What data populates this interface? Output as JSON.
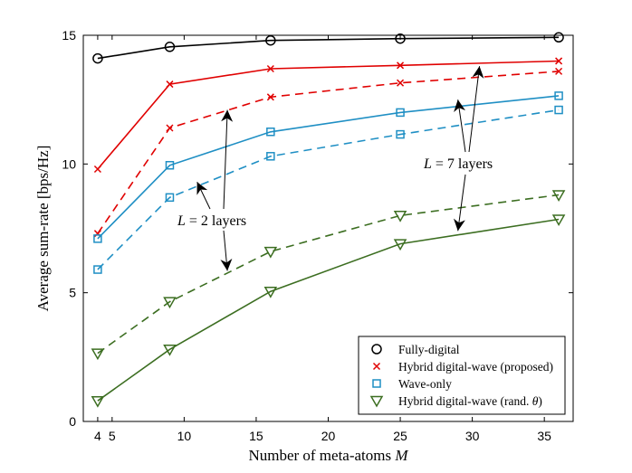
{
  "chart_data": {
    "type": "line",
    "title": "",
    "xlabel": "Number of meta-atoms M",
    "ylabel": "Average sum-rate [bps/Hz]",
    "xlim": [
      3,
      37
    ],
    "ylim": [
      0,
      15
    ],
    "xticks": [
      4,
      5,
      10,
      15,
      20,
      25,
      30,
      35
    ],
    "yticks": [
      0,
      5,
      10,
      15
    ],
    "x": [
      4,
      9,
      16,
      25,
      36
    ],
    "grid": false,
    "legend_position": "bottom-right",
    "series": [
      {
        "name": "Fully-digital",
        "marker": "circle",
        "color": "#000000",
        "dash": "solid",
        "values": [
          14.1,
          14.55,
          14.8,
          14.87,
          14.92
        ]
      },
      {
        "name": "Hybrid digital-wave (proposed)",
        "marker": "x",
        "color": "#e00000",
        "dash": "solid",
        "values": [
          9.8,
          13.1,
          13.7,
          13.83,
          14.0
        ]
      },
      {
        "name": "Hybrid digital-wave (proposed)",
        "marker": "x",
        "color": "#e00000",
        "dash": "dashed",
        "values": [
          7.3,
          11.4,
          12.6,
          13.15,
          13.6
        ]
      },
      {
        "name": "Wave-only",
        "marker": "square",
        "color": "#1f8fc4",
        "dash": "solid",
        "values": [
          7.1,
          9.95,
          11.25,
          12.0,
          12.65
        ]
      },
      {
        "name": "Wave-only",
        "marker": "square",
        "color": "#1f8fc4",
        "dash": "dashed",
        "values": [
          5.9,
          8.7,
          10.3,
          11.15,
          12.1
        ]
      },
      {
        "name": "Hybrid digital-wave (rand. θ)",
        "marker": "triangle-down",
        "color": "#3c6e21",
        "dash": "dashed",
        "values": [
          2.65,
          4.65,
          6.6,
          8.0,
          8.8
        ]
      },
      {
        "name": "Hybrid digital-wave (rand. θ)",
        "marker": "triangle-down",
        "color": "#3c6e21",
        "dash": "solid",
        "values": [
          0.8,
          2.8,
          5.05,
          6.9,
          7.85
        ]
      }
    ],
    "legend": [
      {
        "label": "Fully-digital",
        "marker": "circle",
        "color": "#000000"
      },
      {
        "label": "Hybrid digital-wave (proposed)",
        "marker": "x",
        "color": "#e00000"
      },
      {
        "label": "Wave-only",
        "marker": "square",
        "color": "#1f8fc4"
      },
      {
        "label": "Hybrid digital-wave (rand. θ)",
        "marker": "triangle-down",
        "color": "#3c6e21"
      }
    ],
    "annotations": [
      {
        "text": "L = 2 layers",
        "arrows_to": [
          [
            10.9,
            9.3
          ],
          [
            13.0,
            12.1
          ],
          [
            13.0,
            5.85
          ]
        ]
      },
      {
        "text": "L = 7 layers",
        "arrows_to": [
          [
            29.0,
            12.5
          ],
          [
            30.5,
            13.8
          ],
          [
            29.0,
            7.4
          ]
        ]
      }
    ]
  }
}
